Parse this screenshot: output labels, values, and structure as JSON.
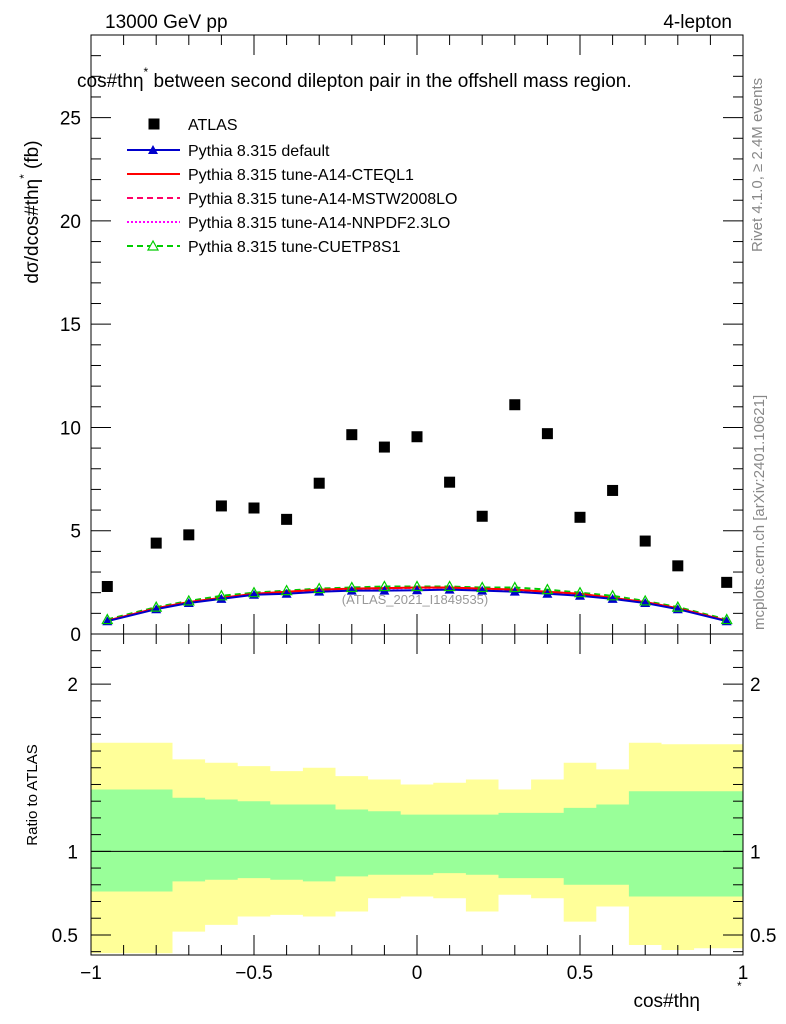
{
  "header": {
    "energy_label": "13000 GeV pp",
    "channel_label": "4-lepton",
    "plot_title": "cos#thη^{*} between second dilepton pair in the offshell mass region.",
    "plot_title_base": "cos#thη",
    "plot_title_sup": "*",
    "plot_title_rest": " between second dilepton pair in the offshell mass region."
  },
  "side_labels": {
    "rivet": "Rivet 4.1.0, ≥ 2.4M events",
    "mcplots": "mcplots.cern.ch [arXiv:2401.10621]"
  },
  "watermark": "(ATLAS_2021_I1849535)",
  "ratio_ylabel": "Ratio to ATLAS",
  "colors": {
    "atlas": "#000000",
    "default": "#0000cc",
    "cteql1": "#ff0000",
    "mstw": "#ff0066",
    "nnpdf": "#ff00ff",
    "cuetp8s1": "#00cc00",
    "band_inner": "#99ff99",
    "band_outer": "#ffff99"
  },
  "chart_data": {
    "type": "scatter",
    "title": "cos#thη^{*} between second dilepton pair in the offshell mass region.",
    "xlabel": "cos#thη^{*}",
    "ylabel": "dσ/dcos#thη^{*} (fb)",
    "xlim": [
      -1.0,
      1.0
    ],
    "ylim": [
      0,
      29
    ],
    "x_ticks": [
      -1,
      -0.5,
      0,
      0.5,
      1
    ],
    "x_tick_labels": [
      "−1",
      "−0.5",
      "0",
      "0.5",
      "1"
    ],
    "y_ticks": [
      0,
      5,
      10,
      15,
      20,
      25
    ],
    "y_tick_labels": [
      "0",
      "5",
      "10",
      "15",
      "20",
      "25"
    ],
    "x": [
      -0.95,
      -0.8,
      -0.7,
      -0.6,
      -0.5,
      -0.4,
      -0.3,
      -0.2,
      -0.1,
      0.0,
      0.1,
      0.2,
      0.3,
      0.4,
      0.5,
      0.6,
      0.7,
      0.8,
      0.95
    ],
    "bin_edges": [
      -1.0,
      -0.85,
      -0.75,
      -0.65,
      -0.55,
      -0.45,
      -0.35,
      -0.25,
      -0.15,
      -0.05,
      0.05,
      0.15,
      0.25,
      0.35,
      0.45,
      0.55,
      0.65,
      0.75,
      0.85,
      1.0
    ],
    "data": {
      "name": "ATLAS",
      "values": [
        2.3,
        4.4,
        4.8,
        6.2,
        6.1,
        5.55,
        7.3,
        9.65,
        9.05,
        9.55,
        7.35,
        5.7,
        11.1,
        9.7,
        5.65,
        6.95,
        4.5,
        3.3,
        2.5
      ]
    },
    "series": [
      {
        "name": "Pythia 8.315 default",
        "color_key": "default",
        "style": "solid",
        "marker": "triangle-filled",
        "values": [
          0.62,
          1.2,
          1.5,
          1.7,
          1.9,
          1.95,
          2.05,
          2.1,
          2.1,
          2.12,
          2.15,
          2.1,
          2.05,
          1.95,
          1.85,
          1.7,
          1.5,
          1.2,
          0.62
        ]
      },
      {
        "name": "Pythia 8.315 tune-A14-CTEQL1",
        "color_key": "cteql1",
        "style": "solid",
        "marker": "none",
        "values": [
          0.65,
          1.25,
          1.55,
          1.75,
          1.95,
          2.05,
          2.15,
          2.2,
          2.22,
          2.25,
          2.25,
          2.2,
          2.15,
          2.05,
          1.95,
          1.75,
          1.55,
          1.25,
          0.65
        ]
      },
      {
        "name": "Pythia 8.315 tune-A14-MSTW2008LO",
        "color_key": "mstw",
        "style": "dashed",
        "marker": "none",
        "values": [
          0.64,
          1.24,
          1.54,
          1.74,
          1.94,
          2.04,
          2.14,
          2.19,
          2.21,
          2.24,
          2.24,
          2.19,
          2.14,
          2.04,
          1.94,
          1.74,
          1.54,
          1.24,
          0.64
        ]
      },
      {
        "name": "Pythia 8.315 tune-A14-NNPDF2.3LO",
        "color_key": "nnpdf",
        "style": "dotted",
        "marker": "none",
        "values": [
          0.63,
          1.23,
          1.53,
          1.73,
          1.93,
          2.03,
          2.13,
          2.18,
          2.2,
          2.23,
          2.23,
          2.18,
          2.13,
          2.03,
          1.93,
          1.73,
          1.53,
          1.23,
          0.63
        ]
      },
      {
        "name": "Pythia 8.315 tune-CUETP8S1",
        "color_key": "cuetp8s1",
        "style": "dashed",
        "marker": "triangle-open",
        "values": [
          0.7,
          1.3,
          1.6,
          1.85,
          2.0,
          2.1,
          2.2,
          2.25,
          2.3,
          2.3,
          2.3,
          2.25,
          2.25,
          2.15,
          2.0,
          1.85,
          1.6,
          1.3,
          0.7
        ]
      }
    ],
    "ratio": {
      "ylabel": "Ratio to ATLAS",
      "ylim": [
        0.38,
        2.3
      ],
      "y_ticks": [
        0.5,
        1,
        2
      ],
      "y_tick_labels": [
        "0.5",
        "1",
        "2"
      ],
      "reference": 1,
      "inner_band": {
        "lower": [
          0.76,
          0.76,
          0.82,
          0.83,
          0.84,
          0.83,
          0.82,
          0.85,
          0.86,
          0.86,
          0.87,
          0.86,
          0.84,
          0.84,
          0.8,
          0.8,
          0.73,
          0.73,
          0.73
        ],
        "upper": [
          1.37,
          1.37,
          1.32,
          1.31,
          1.3,
          1.28,
          1.28,
          1.25,
          1.24,
          1.22,
          1.22,
          1.22,
          1.23,
          1.23,
          1.26,
          1.28,
          1.36,
          1.36,
          1.36
        ]
      },
      "outer_band": {
        "lower": [
          0.39,
          0.39,
          0.52,
          0.56,
          0.61,
          0.62,
          0.61,
          0.64,
          0.72,
          0.73,
          0.72,
          0.64,
          0.74,
          0.72,
          0.58,
          0.67,
          0.44,
          0.41,
          0.42
        ],
        "upper": [
          1.65,
          1.65,
          1.55,
          1.53,
          1.51,
          1.48,
          1.5,
          1.45,
          1.43,
          1.4,
          1.41,
          1.43,
          1.37,
          1.43,
          1.53,
          1.49,
          1.65,
          1.64,
          1.64
        ]
      }
    }
  }
}
